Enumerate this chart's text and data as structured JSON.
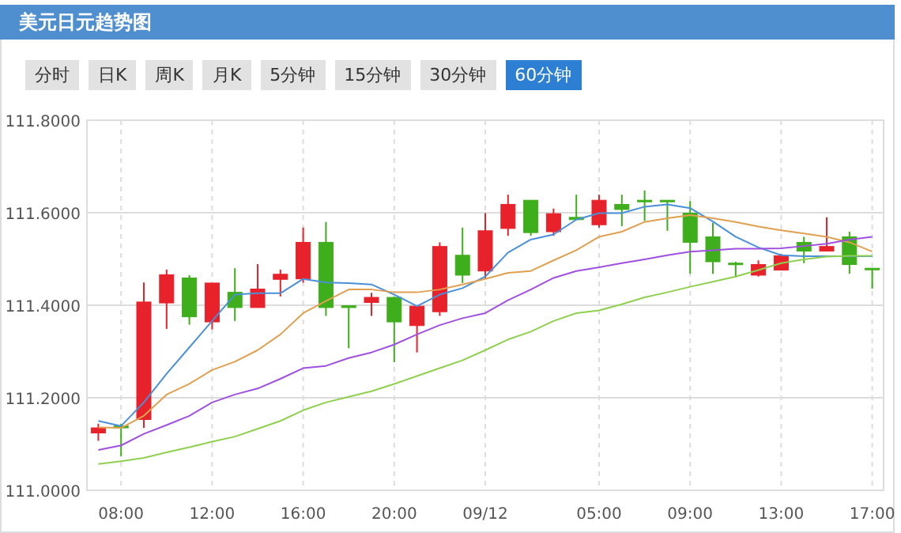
{
  "chart_data": {
    "type": "candlestick",
    "title": "美元日元趋势图",
    "annotations": [
      "分时",
      "日K",
      "周K",
      "月K",
      "5分钟",
      "15分钟",
      "30分钟",
      "60分钟"
    ],
    "categories": [
      null,
      "08:00",
      null,
      null,
      null,
      "12:00",
      null,
      null,
      null,
      "16:00",
      null,
      null,
      null,
      "20:00",
      null,
      null,
      null,
      "09/12",
      null,
      null,
      null,
      null,
      "05:00",
      null,
      null,
      null,
      "09:00",
      null,
      null,
      null,
      "13:00",
      null,
      null,
      null,
      "17:00"
    ],
    "ohlc": [
      [
        111.124,
        111.144,
        111.107,
        111.135
      ],
      [
        111.139,
        111.144,
        111.074,
        111.135
      ],
      [
        111.153,
        111.449,
        111.135,
        111.407
      ],
      [
        111.405,
        111.477,
        111.349,
        111.466
      ],
      [
        111.459,
        111.465,
        111.358,
        111.375
      ],
      [
        111.364,
        111.448,
        111.348,
        111.448
      ],
      [
        111.428,
        111.48,
        111.366,
        111.395
      ],
      [
        111.395,
        111.489,
        111.395,
        111.435
      ],
      [
        111.456,
        111.477,
        111.419,
        111.467
      ],
      [
        111.457,
        111.568,
        111.449,
        111.536
      ],
      [
        111.536,
        111.58,
        111.377,
        111.395
      ],
      [
        111.399,
        111.399,
        111.307,
        111.395
      ],
      [
        111.406,
        111.427,
        111.377,
        111.417
      ],
      [
        111.417,
        111.419,
        111.277,
        111.364
      ],
      [
        111.356,
        111.398,
        111.298,
        111.398
      ],
      [
        111.386,
        111.536,
        111.377,
        111.527
      ],
      [
        111.508,
        111.568,
        111.448,
        111.465
      ],
      [
        111.474,
        111.599,
        111.457,
        111.561
      ],
      [
        111.566,
        111.639,
        111.55,
        111.618
      ],
      [
        111.627,
        111.627,
        111.55,
        111.557
      ],
      [
        111.559,
        111.609,
        111.55,
        111.598
      ],
      [
        111.59,
        111.639,
        111.585,
        111.585
      ],
      [
        111.574,
        111.639,
        111.568,
        111.627
      ],
      [
        111.618,
        111.639,
        111.571,
        111.607
      ],
      [
        111.627,
        111.648,
        111.582,
        111.625
      ],
      [
        111.627,
        111.627,
        111.561,
        111.625
      ],
      [
        111.599,
        111.625,
        111.468,
        111.536
      ],
      [
        111.548,
        111.578,
        111.468,
        111.494
      ],
      [
        111.491,
        111.494,
        111.46,
        111.489
      ],
      [
        111.465,
        111.497,
        111.462,
        111.488
      ],
      [
        111.476,
        111.511,
        111.476,
        111.507
      ],
      [
        111.536,
        111.548,
        111.491,
        111.517
      ],
      [
        111.517,
        111.59,
        111.517,
        111.527
      ],
      [
        111.548,
        111.559,
        111.468,
        111.488
      ],
      [
        111.48,
        111.48,
        111.436,
        111.477
      ]
    ],
    "colors": [
      "#e8222a",
      "#3fae1c",
      "#e8222a",
      "#e8222a",
      "#3fae1c",
      "#e8222a",
      "#3fae1c",
      "#e8222a",
      "#e8222a",
      "#e8222a",
      "#3fae1c",
      "#3fae1c",
      "#e8222a",
      "#3fae1c",
      "#e8222a",
      "#e8222a",
      "#3fae1c",
      "#e8222a",
      "#e8222a",
      "#3fae1c",
      "#e8222a",
      "#3fae1c",
      "#e8222a",
      "#3fae1c",
      "#3fae1c",
      "#3fae1c",
      "#3fae1c",
      "#3fae1c",
      "#3fae1c",
      "#e8222a",
      "#e8222a",
      "#3fae1c",
      "#e8222a",
      "#3fae1c",
      "#3fae1c"
    ],
    "series": [
      {
        "type": "line",
        "color": "#4a90d9",
        "values": [
          111.15,
          111.139,
          111.19,
          111.252,
          111.309,
          111.366,
          111.423,
          111.426,
          111.426,
          111.457,
          111.449,
          111.448,
          111.445,
          111.423,
          111.398,
          111.423,
          111.437,
          111.462,
          111.514,
          111.542,
          111.553,
          111.585,
          111.599,
          111.599,
          111.613,
          111.618,
          111.61,
          111.581,
          111.548,
          111.525,
          111.508,
          111.506,
          111.506,
          111.506,
          111.506
        ]
      },
      {
        "type": "line",
        "color": "#e0a050",
        "values": [
          111.136,
          111.135,
          111.161,
          111.207,
          111.23,
          111.26,
          111.278,
          111.303,
          111.337,
          111.383,
          111.409,
          111.434,
          111.434,
          111.428,
          111.428,
          111.434,
          111.445,
          111.457,
          111.47,
          111.474,
          111.497,
          111.519,
          111.548,
          111.559,
          111.58,
          111.588,
          111.595,
          111.588,
          111.58,
          111.57,
          111.562,
          111.555,
          111.548,
          111.536,
          111.516
        ]
      },
      {
        "type": "line",
        "color": "#a050e0",
        "values": [
          111.087,
          111.097,
          111.122,
          111.141,
          111.161,
          111.19,
          111.207,
          111.22,
          111.241,
          111.264,
          111.269,
          111.286,
          111.298,
          111.315,
          111.337,
          111.357,
          111.372,
          111.383,
          111.411,
          111.434,
          111.459,
          111.474,
          111.482,
          111.491,
          111.499,
          111.508,
          111.516,
          111.519,
          111.522,
          111.522,
          111.523,
          111.528,
          111.533,
          111.542,
          111.548
        ]
      },
      {
        "type": "line",
        "color": "#90d050",
        "values": [
          111.057,
          111.063,
          111.07,
          111.082,
          111.093,
          111.105,
          111.116,
          111.133,
          111.15,
          111.173,
          111.19,
          111.202,
          111.214,
          111.23,
          111.247,
          111.264,
          111.281,
          111.303,
          111.326,
          111.343,
          111.366,
          111.383,
          111.389,
          111.402,
          111.417,
          111.428,
          111.44,
          111.451,
          111.462,
          111.476,
          111.491,
          111.499,
          111.505,
          111.507,
          111.507
        ]
      }
    ],
    "ylim": [
      111.0,
      111.8
    ],
    "yticks": [
      {
        "value": 111.0,
        "label": "111.0000"
      },
      {
        "value": 111.2,
        "label": "111.2000"
      },
      {
        "value": 111.4,
        "label": "111.4000"
      },
      {
        "value": 111.6,
        "label": "111.6000"
      },
      {
        "value": 111.8,
        "label": "111.8000"
      }
    ],
    "grid": true
  }
}
